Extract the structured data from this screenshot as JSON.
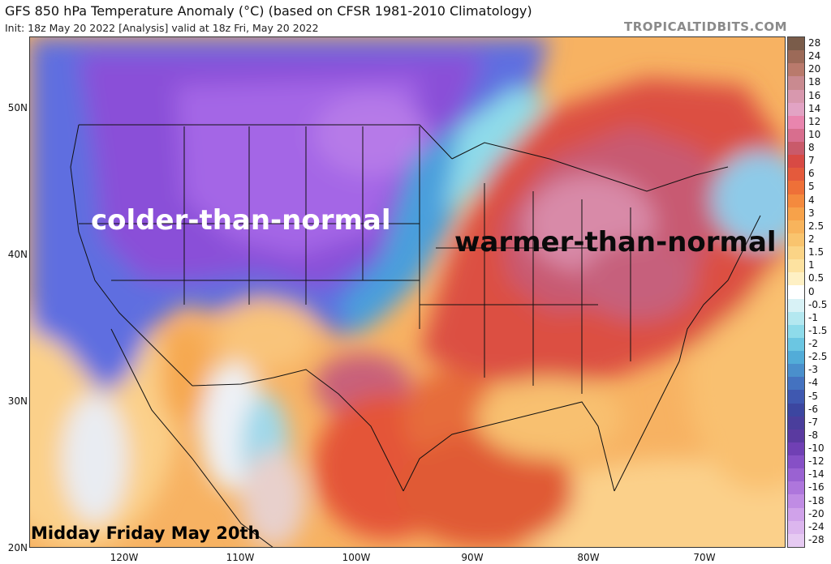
{
  "header": {
    "title": "GFS 850 hPa Temperature Anomaly (°C) (based on CFSR 1981-2010 Climatology)",
    "subtitle": "Init: 18z May 20 2022   [Analysis]   valid at 18z Fri, May 20 2022",
    "brand": "TROPICALTIDBITS.COM"
  },
  "map": {
    "annotations": {
      "cold_label": "colder-than-normal",
      "warm_label": "warmer-than-normal",
      "date_label": "Midday Friday May 20th"
    },
    "latitude_labels": [
      {
        "text": "50N",
        "lat": 50
      },
      {
        "text": "40N",
        "lat": 40
      },
      {
        "text": "30N",
        "lat": 30
      },
      {
        "text": "20N",
        "lat": 20
      }
    ],
    "longitude_labels": [
      {
        "text": "120W",
        "lon": -120
      },
      {
        "text": "110W",
        "lon": -110
      },
      {
        "text": "100W",
        "lon": -100
      },
      {
        "text": "90W",
        "lon": -90
      },
      {
        "text": "80W",
        "lon": -80
      },
      {
        "text": "70W",
        "lon": -70
      }
    ]
  },
  "colorbar": {
    "labels": [
      "28",
      "24",
      "20",
      "18",
      "16",
      "14",
      "12",
      "10",
      "8",
      "7",
      "6",
      "5",
      "4",
      "3",
      "2.5",
      "2",
      "1.5",
      "1",
      "0.5",
      "0",
      "-0.5",
      "-1",
      "-1.5",
      "-2",
      "-2.5",
      "-3",
      "-4",
      "-5",
      "-6",
      "-7",
      "-8",
      "-10",
      "-12",
      "-14",
      "-16",
      "-18",
      "-20",
      "-24",
      "-28"
    ],
    "colors": [
      "#7a5c4a",
      "#9c6a58",
      "#b97a6c",
      "#c98a90",
      "#d898ae",
      "#e2a3c4",
      "#e985ae",
      "#d86e8e",
      "#c95a6a",
      "#d84a44",
      "#e45a3c",
      "#ee7038",
      "#f48a3e",
      "#f7a24a",
      "#f8b45c",
      "#f9c46e",
      "#fbd486",
      "#fde2a0",
      "#fef0c4",
      "#ffffff",
      "#d8f2f6",
      "#b4e8f0",
      "#8edbea",
      "#6bc6e2",
      "#52acd8",
      "#4a8fcc",
      "#4472c0",
      "#3f58b0",
      "#3c46a0",
      "#4a3e9c",
      "#5a3aa0",
      "#7040b4",
      "#8650c6",
      "#9a62d2",
      "#ae76dc",
      "#c08ce4",
      "#d0a2ea",
      "#dcb6ee",
      "#e6caf2"
    ]
  }
}
